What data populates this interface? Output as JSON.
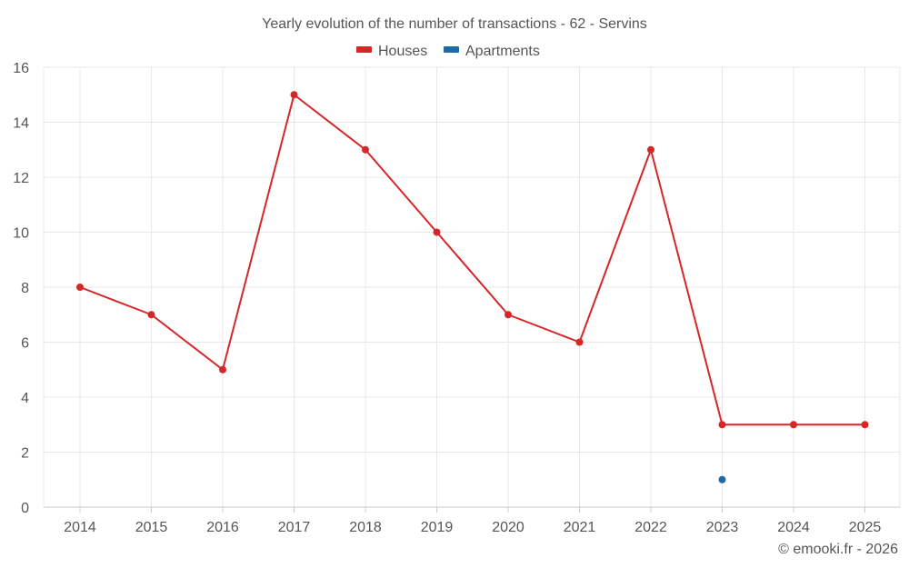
{
  "chart_data": {
    "type": "line",
    "title": "Yearly evolution of the number of transactions - 62 - Servins",
    "xlabel": "",
    "ylabel": "",
    "categories": [
      "2014",
      "2015",
      "2016",
      "2017",
      "2018",
      "2019",
      "2020",
      "2021",
      "2022",
      "2023",
      "2024",
      "2025"
    ],
    "ylim": [
      0,
      16
    ],
    "yticks": [
      0,
      2,
      4,
      6,
      8,
      10,
      12,
      14,
      16
    ],
    "grid": true,
    "legend_position": "top-center",
    "series": [
      {
        "name": "Houses",
        "color": "#d62728",
        "values": [
          8,
          7,
          5,
          15,
          13,
          10,
          7,
          6,
          13,
          3,
          3,
          3
        ]
      },
      {
        "name": "Apartments",
        "color": "#1f6aa5",
        "values": [
          null,
          null,
          null,
          null,
          null,
          null,
          null,
          null,
          null,
          1,
          null,
          null
        ]
      }
    ]
  },
  "credit": "© emooki.fr - 2026"
}
